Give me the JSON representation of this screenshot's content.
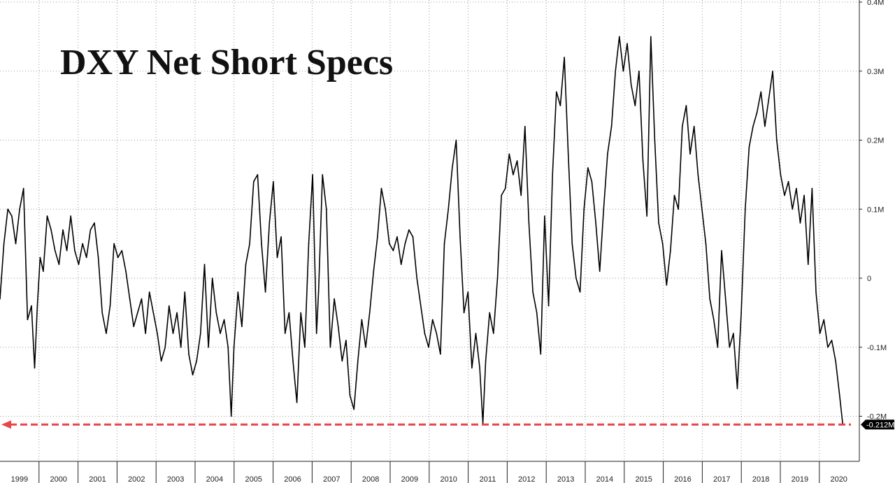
{
  "chart_data": {
    "type": "line",
    "title": "DXY Net Short Specs",
    "xlabel": "",
    "ylabel": "",
    "x_range": [
      1998.9,
      2020.45
    ],
    "ylim": [
      -0.25,
      0.4
    ],
    "y_ticks": [
      {
        "value": 0.4,
        "label": "0.4M"
      },
      {
        "value": 0.3,
        "label": "0.3M"
      },
      {
        "value": 0.2,
        "label": "0.2M"
      },
      {
        "value": 0.1,
        "label": "0.1M"
      },
      {
        "value": 0.0,
        "label": "0"
      },
      {
        "value": -0.1,
        "label": "-0.1M"
      },
      {
        "value": -0.2,
        "label": "-0.2M"
      }
    ],
    "x_ticks": [
      "1999",
      "2000",
      "2001",
      "2002",
      "2003",
      "2004",
      "2005",
      "2006",
      "2007",
      "2008",
      "2009",
      "2010",
      "2011",
      "2012",
      "2013",
      "2014",
      "2015",
      "2016",
      "2017",
      "2018",
      "2019",
      "2020"
    ],
    "grid": true,
    "series": [
      {
        "color": "#000000",
        "points": [
          [
            1998.9,
            -0.03
          ],
          [
            1999.0,
            0.05
          ],
          [
            1999.1,
            0.1
          ],
          [
            1999.2,
            0.09
          ],
          [
            1999.3,
            0.05
          ],
          [
            1999.4,
            0.1
          ],
          [
            1999.5,
            0.13
          ],
          [
            1999.6,
            -0.06
          ],
          [
            1999.7,
            -0.04
          ],
          [
            1999.78,
            -0.13
          ],
          [
            1999.85,
            -0.04
          ],
          [
            1999.92,
            0.03
          ],
          [
            2000.0,
            0.01
          ],
          [
            2000.1,
            0.09
          ],
          [
            2000.2,
            0.07
          ],
          [
            2000.3,
            0.04
          ],
          [
            2000.4,
            0.02
          ],
          [
            2000.5,
            0.07
          ],
          [
            2000.6,
            0.04
          ],
          [
            2000.7,
            0.09
          ],
          [
            2000.8,
            0.04
          ],
          [
            2000.9,
            0.02
          ],
          [
            2001.0,
            0.05
          ],
          [
            2001.1,
            0.03
          ],
          [
            2001.2,
            0.07
          ],
          [
            2001.3,
            0.08
          ],
          [
            2001.4,
            0.03
          ],
          [
            2001.5,
            -0.05
          ],
          [
            2001.6,
            -0.08
          ],
          [
            2001.7,
            -0.04
          ],
          [
            2001.8,
            0.05
          ],
          [
            2001.9,
            0.03
          ],
          [
            2002.0,
            0.04
          ],
          [
            2002.1,
            0.01
          ],
          [
            2002.2,
            -0.03
          ],
          [
            2002.3,
            -0.07
          ],
          [
            2002.4,
            -0.05
          ],
          [
            2002.5,
            -0.03
          ],
          [
            2002.6,
            -0.08
          ],
          [
            2002.7,
            -0.02
          ],
          [
            2002.8,
            -0.05
          ],
          [
            2002.9,
            -0.08
          ],
          [
            2003.0,
            -0.12
          ],
          [
            2003.1,
            -0.1
          ],
          [
            2003.2,
            -0.04
          ],
          [
            2003.3,
            -0.08
          ],
          [
            2003.4,
            -0.05
          ],
          [
            2003.5,
            -0.1
          ],
          [
            2003.6,
            -0.02
          ],
          [
            2003.7,
            -0.11
          ],
          [
            2003.8,
            -0.14
          ],
          [
            2003.9,
            -0.12
          ],
          [
            2004.0,
            -0.08
          ],
          [
            2004.1,
            0.02
          ],
          [
            2004.2,
            -0.1
          ],
          [
            2004.3,
            0.0
          ],
          [
            2004.4,
            -0.05
          ],
          [
            2004.5,
            -0.08
          ],
          [
            2004.6,
            -0.06
          ],
          [
            2004.7,
            -0.1
          ],
          [
            2004.78,
            -0.2
          ],
          [
            2004.85,
            -0.1
          ],
          [
            2004.95,
            -0.02
          ],
          [
            2005.05,
            -0.07
          ],
          [
            2005.15,
            0.02
          ],
          [
            2005.25,
            0.05
          ],
          [
            2005.35,
            0.14
          ],
          [
            2005.45,
            0.15
          ],
          [
            2005.55,
            0.05
          ],
          [
            2005.65,
            -0.02
          ],
          [
            2005.75,
            0.08
          ],
          [
            2005.85,
            0.14
          ],
          [
            2005.95,
            0.03
          ],
          [
            2006.05,
            0.06
          ],
          [
            2006.15,
            -0.08
          ],
          [
            2006.25,
            -0.05
          ],
          [
            2006.35,
            -0.12
          ],
          [
            2006.45,
            -0.18
          ],
          [
            2006.55,
            -0.05
          ],
          [
            2006.65,
            -0.1
          ],
          [
            2006.75,
            0.05
          ],
          [
            2006.85,
            0.15
          ],
          [
            2006.95,
            -0.08
          ],
          [
            2007.0,
            -0.02
          ],
          [
            2007.1,
            0.15
          ],
          [
            2007.2,
            0.1
          ],
          [
            2007.3,
            -0.1
          ],
          [
            2007.4,
            -0.03
          ],
          [
            2007.5,
            -0.07
          ],
          [
            2007.6,
            -0.12
          ],
          [
            2007.7,
            -0.09
          ],
          [
            2007.8,
            -0.17
          ],
          [
            2007.9,
            -0.19
          ],
          [
            2008.0,
            -0.12
          ],
          [
            2008.1,
            -0.06
          ],
          [
            2008.2,
            -0.1
          ],
          [
            2008.3,
            -0.05
          ],
          [
            2008.4,
            0.01
          ],
          [
            2008.5,
            0.06
          ],
          [
            2008.6,
            0.13
          ],
          [
            2008.7,
            0.1
          ],
          [
            2008.8,
            0.05
          ],
          [
            2008.9,
            0.04
          ],
          [
            2009.0,
            0.06
          ],
          [
            2009.1,
            0.02
          ],
          [
            2009.2,
            0.05
          ],
          [
            2009.3,
            0.07
          ],
          [
            2009.4,
            0.06
          ],
          [
            2009.5,
            0.0
          ],
          [
            2009.6,
            -0.04
          ],
          [
            2009.7,
            -0.08
          ],
          [
            2009.8,
            -0.1
          ],
          [
            2009.9,
            -0.06
          ],
          [
            2010.0,
            -0.08
          ],
          [
            2010.1,
            -0.11
          ],
          [
            2010.2,
            0.05
          ],
          [
            2010.3,
            0.1
          ],
          [
            2010.4,
            0.16
          ],
          [
            2010.5,
            0.2
          ],
          [
            2010.6,
            0.06
          ],
          [
            2010.7,
            -0.05
          ],
          [
            2010.8,
            -0.02
          ],
          [
            2010.9,
            -0.13
          ],
          [
            2011.0,
            -0.08
          ],
          [
            2011.1,
            -0.13
          ],
          [
            2011.18,
            -0.21
          ],
          [
            2011.25,
            -0.12
          ],
          [
            2011.35,
            -0.05
          ],
          [
            2011.45,
            -0.08
          ],
          [
            2011.55,
            0.0
          ],
          [
            2011.65,
            0.12
          ],
          [
            2011.75,
            0.13
          ],
          [
            2011.85,
            0.18
          ],
          [
            2011.95,
            0.15
          ],
          [
            2012.05,
            0.17
          ],
          [
            2012.15,
            0.12
          ],
          [
            2012.25,
            0.22
          ],
          [
            2012.35,
            0.08
          ],
          [
            2012.45,
            -0.02
          ],
          [
            2012.55,
            -0.05
          ],
          [
            2012.65,
            -0.11
          ],
          [
            2012.75,
            0.09
          ],
          [
            2012.85,
            -0.04
          ],
          [
            2012.95,
            0.15
          ],
          [
            2013.05,
            0.27
          ],
          [
            2013.15,
            0.25
          ],
          [
            2013.25,
            0.32
          ],
          [
            2013.35,
            0.18
          ],
          [
            2013.45,
            0.05
          ],
          [
            2013.55,
            0.0
          ],
          [
            2013.65,
            -0.02
          ],
          [
            2013.75,
            0.1
          ],
          [
            2013.85,
            0.16
          ],
          [
            2013.95,
            0.14
          ],
          [
            2014.05,
            0.08
          ],
          [
            2014.15,
            0.01
          ],
          [
            2014.25,
            0.1
          ],
          [
            2014.35,
            0.18
          ],
          [
            2014.45,
            0.22
          ],
          [
            2014.55,
            0.3
          ],
          [
            2014.65,
            0.35
          ],
          [
            2014.75,
            0.3
          ],
          [
            2014.85,
            0.34
          ],
          [
            2014.95,
            0.28
          ],
          [
            2015.05,
            0.25
          ],
          [
            2015.15,
            0.3
          ],
          [
            2015.25,
            0.17
          ],
          [
            2015.35,
            0.09
          ],
          [
            2015.45,
            0.35
          ],
          [
            2015.55,
            0.2
          ],
          [
            2015.65,
            0.08
          ],
          [
            2015.75,
            0.05
          ],
          [
            2015.85,
            -0.01
          ],
          [
            2015.95,
            0.04
          ],
          [
            2016.05,
            0.12
          ],
          [
            2016.15,
            0.1
          ],
          [
            2016.25,
            0.22
          ],
          [
            2016.35,
            0.25
          ],
          [
            2016.45,
            0.18
          ],
          [
            2016.55,
            0.22
          ],
          [
            2016.65,
            0.15
          ],
          [
            2016.75,
            0.1
          ],
          [
            2016.85,
            0.05
          ],
          [
            2016.95,
            -0.03
          ],
          [
            2017.05,
            -0.06
          ],
          [
            2017.15,
            -0.1
          ],
          [
            2017.25,
            0.04
          ],
          [
            2017.35,
            -0.03
          ],
          [
            2017.45,
            -0.1
          ],
          [
            2017.55,
            -0.08
          ],
          [
            2017.65,
            -0.16
          ],
          [
            2017.75,
            -0.05
          ],
          [
            2017.85,
            0.1
          ],
          [
            2017.95,
            0.19
          ],
          [
            2018.05,
            0.22
          ],
          [
            2018.15,
            0.24
          ],
          [
            2018.25,
            0.27
          ],
          [
            2018.35,
            0.22
          ],
          [
            2018.45,
            0.26
          ],
          [
            2018.55,
            0.3
          ],
          [
            2018.65,
            0.2
          ],
          [
            2018.75,
            0.15
          ],
          [
            2018.85,
            0.12
          ],
          [
            2018.95,
            0.14
          ],
          [
            2019.05,
            0.1
          ],
          [
            2019.15,
            0.13
          ],
          [
            2019.25,
            0.08
          ],
          [
            2019.35,
            0.12
          ],
          [
            2019.45,
            0.02
          ],
          [
            2019.55,
            0.13
          ],
          [
            2019.65,
            -0.02
          ],
          [
            2019.75,
            -0.08
          ],
          [
            2019.85,
            -0.06
          ],
          [
            2019.95,
            -0.1
          ],
          [
            2020.05,
            -0.09
          ],
          [
            2020.15,
            -0.12
          ],
          [
            2020.25,
            -0.17
          ],
          [
            2020.33,
            -0.212
          ]
        ]
      }
    ],
    "callout": {
      "value": -0.212,
      "label": "-0.212M",
      "line_color": "#e8464b",
      "marker_color": "#000000"
    }
  }
}
